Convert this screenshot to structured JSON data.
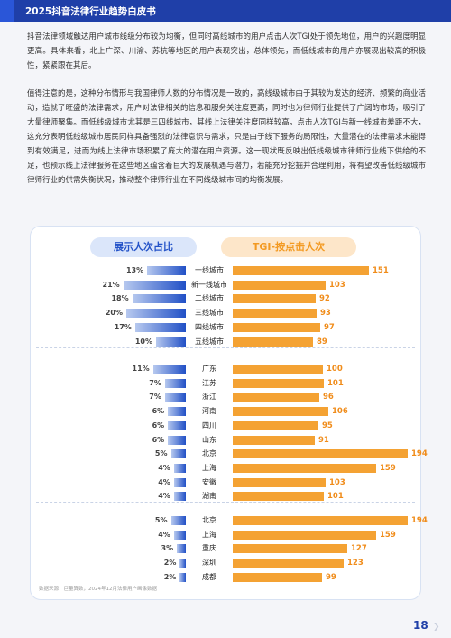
{
  "header": {
    "title": "2025抖音法律行业趋势白皮书"
  },
  "paragraphs": [
    "抖音法律领域触达用户城市线级分布较为均衡，但同时高线城市的用户点击人次TGI处于领先地位，用户的兴趣度明显更高。具体来看，北上广深、川渝、苏杭等地区的用户表现突出，总体领先，而低线城市的用户亦展现出较高的积极性，紧紧跟在其后。",
    "值得注意的是，这种分布情形与我国律师人数的分布情况是一致的，高线级城市由于其较为发达的经济、频繁的商业活动，造就了旺盛的法律需求，用户对法律相关的信息和服务关注度更高，同时也为律师行业提供了广阔的市场，吸引了大量律师聚集。而低线级城市尤其是三四线城市，其线上法律关注度同样较高，点击人次TGI与新一线城市差距不大，这充分表明低线级城市居民同样具备强烈的法律意识与需求，只是由于线下服务的局限性，大量潜在的法律需求未能得到有效满足，进而为线上法律市场积累了庞大的潜在用户资源。这一现状既反映出低线级城市律师行业线下供给的不足，也预示线上法律服务在这些地区蕴含着巨大的发展机遇与潜力，若能充分挖掘并合理利用，将有望改善低线级城市律师行业的供需失衡状况，推动整个律师行业在不同线级城市间的均衡发展。"
  ],
  "chart": {
    "left_title": "展示人次占比",
    "right_title": "TGI-按点击人次",
    "source": "数据来源：巨量算数，2024年12月法律用户画像数据"
  },
  "chart_data": {
    "type": "bar",
    "layout": "butterfly",
    "groups": [
      {
        "categories": [
          "一线城市",
          "新一线城市",
          "二线城市",
          "三线城市",
          "四线城市",
          "五线城市"
        ],
        "share_pct": [
          13,
          21,
          18,
          20,
          17,
          10
        ],
        "tgi": [
          151,
          103,
          92,
          93,
          97,
          89
        ]
      },
      {
        "categories": [
          "广东",
          "江苏",
          "浙江",
          "河南",
          "四川",
          "山东",
          "北京",
          "上海",
          "安徽",
          "湖南"
        ],
        "share_pct": [
          11,
          7,
          7,
          6,
          6,
          6,
          5,
          4,
          4,
          4
        ],
        "tgi": [
          100,
          101,
          96,
          106,
          95,
          91,
          194,
          159,
          103,
          101
        ]
      },
      {
        "categories": [
          "北京",
          "上海",
          "重庆",
          "深圳",
          "成都"
        ],
        "share_pct": [
          5,
          4,
          3,
          2,
          2
        ],
        "tgi": [
          194,
          159,
          127,
          123,
          99
        ]
      }
    ],
    "series": [
      {
        "name": "展示人次占比",
        "unit": "%",
        "color": "#2150c6"
      },
      {
        "name": "TGI-按点击人次",
        "color": "#f4a233"
      }
    ]
  },
  "footer": {
    "page_number": "18"
  }
}
